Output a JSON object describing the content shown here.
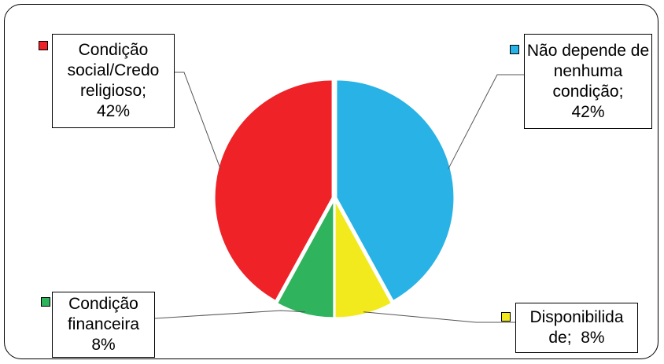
{
  "chart_data": {
    "type": "pie",
    "title": "",
    "slices": [
      {
        "label": "Não depende de nenhuma condição;",
        "value": 42,
        "display": "42%",
        "color": "#29b2e6"
      },
      {
        "label": "Disponibilida de;",
        "value": 8,
        "display": "8%",
        "color": "#f2ea1c"
      },
      {
        "label": "Condição financeira",
        "value": 8,
        "display": "8%",
        "color": "#2fb35c"
      },
      {
        "label": "Condição social/Credo religioso;",
        "value": 42,
        "display": "42%",
        "color": "#ee2227"
      }
    ],
    "legend": "data-labels-with-swatches"
  }
}
